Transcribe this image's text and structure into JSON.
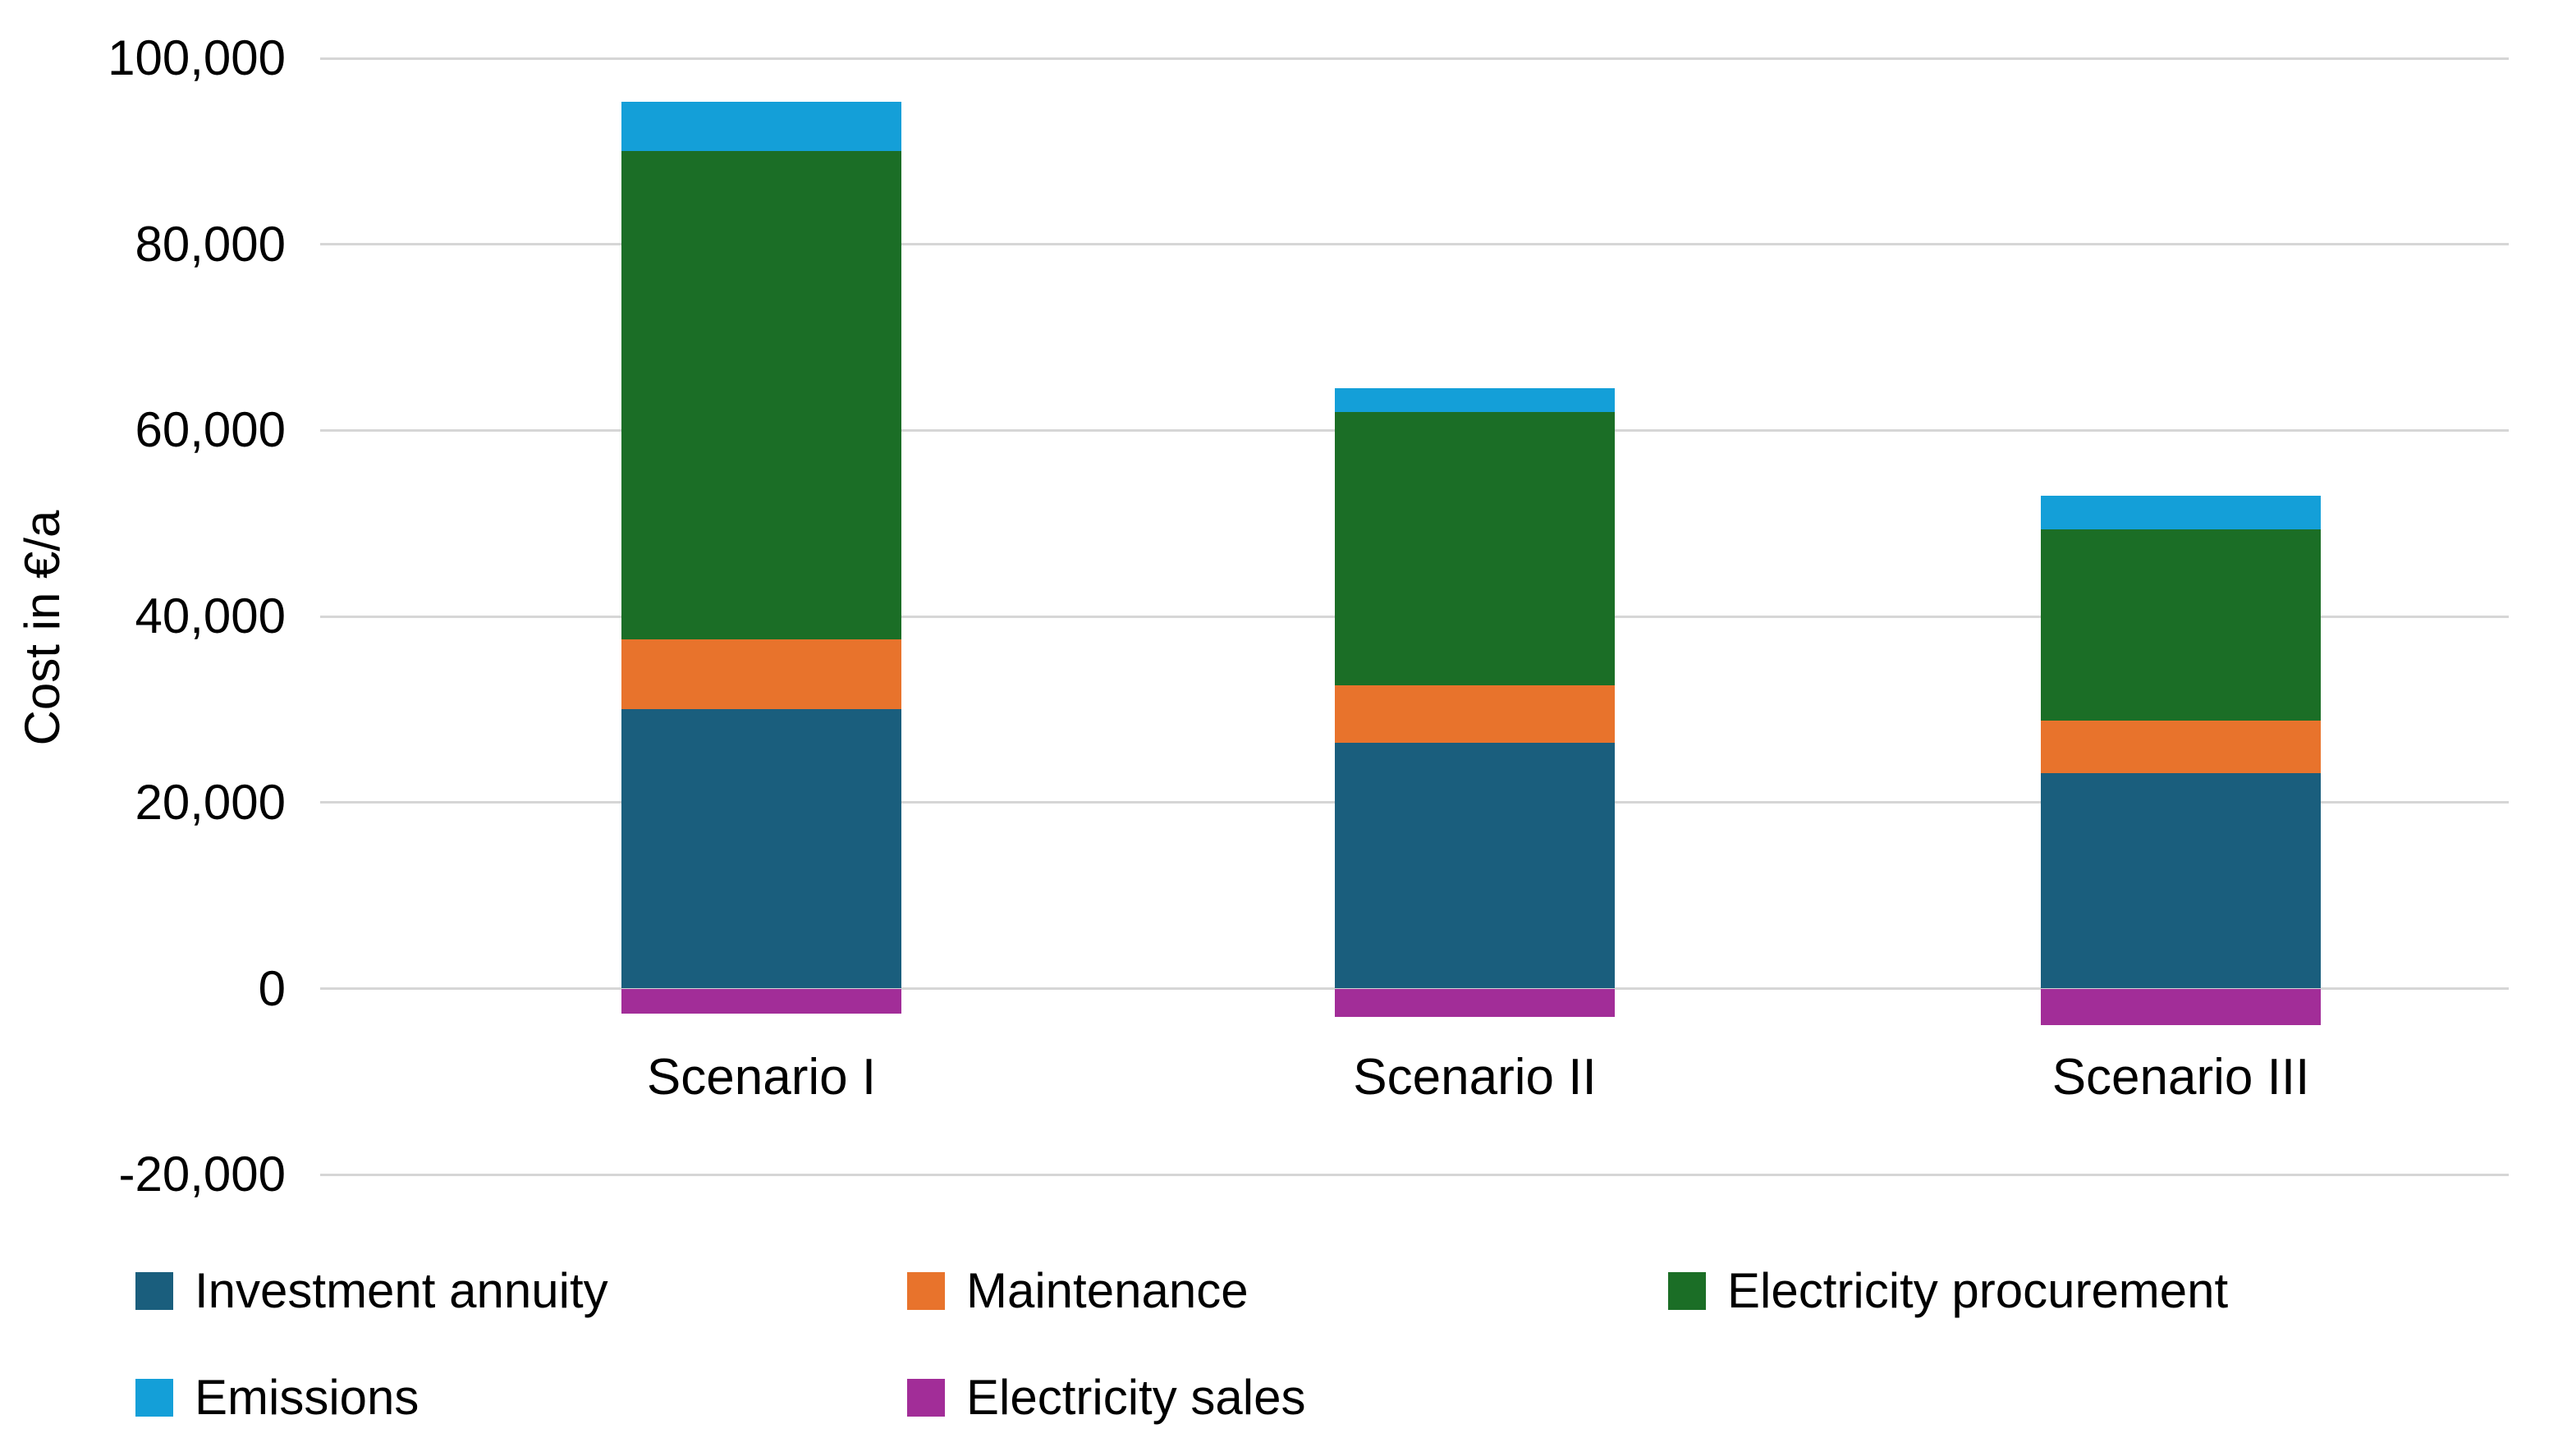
{
  "chart_data": {
    "type": "bar",
    "stacked": true,
    "title": "",
    "xlabel": "",
    "ylabel": "Cost in €/a",
    "categories": [
      "Scenario I",
      "Scenario II",
      "Scenario III"
    ],
    "series": [
      {
        "name": "Investment annuity",
        "color": "#1A5E7D",
        "values": [
          30000,
          26400,
          23200
        ]
      },
      {
        "name": "Maintenance",
        "color": "#E8732C",
        "values": [
          7500,
          6200,
          5600
        ]
      },
      {
        "name": "Electricity procurement",
        "color": "#1B6E26",
        "values": [
          52500,
          29400,
          20600
        ]
      },
      {
        "name": "Emissions",
        "color": "#149FD8",
        "values": [
          5300,
          2500,
          3600
        ]
      },
      {
        "name": "Electricity sales",
        "color": "#A22D98",
        "values": [
          -2700,
          -3000,
          -3900
        ]
      }
    ],
    "bar_totals_positive": [
      95300,
      64500,
      53000
    ],
    "ylim": [
      -20000,
      100000
    ],
    "y_ticks": [
      {
        "value": 100000,
        "label": "100,000"
      },
      {
        "value": 80000,
        "label": "80,000"
      },
      {
        "value": 60000,
        "label": "60,000"
      },
      {
        "value": 40000,
        "label": "40,000"
      },
      {
        "value": 20000,
        "label": "20,000"
      },
      {
        "value": 0,
        "label": "0"
      },
      {
        "value": -20000,
        "label": "-20,000"
      }
    ],
    "grid": true,
    "gridline_color": "#d6d6d6",
    "legend_position": "bottom",
    "legend_rows": [
      [
        "Investment annuity",
        "Maintenance",
        "Electricity procurement"
      ],
      [
        "Emissions",
        "Electricity sales"
      ]
    ]
  }
}
